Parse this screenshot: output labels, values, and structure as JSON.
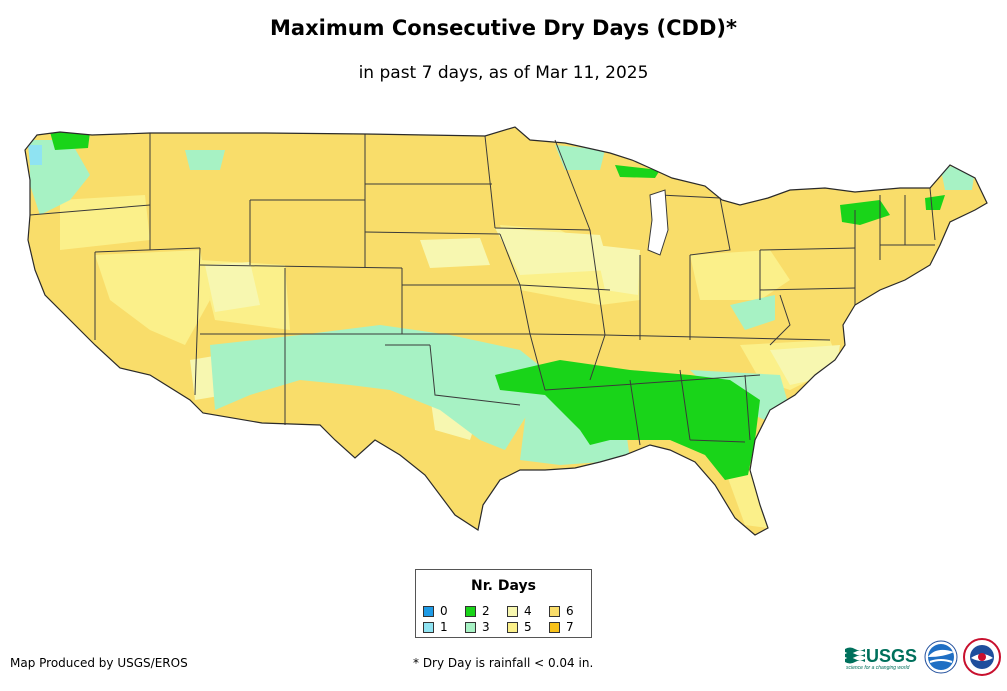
{
  "title": "Maximum Consecutive Dry Days (CDD)*",
  "subtitle": "in past 7 days, as of Mar 11, 2025",
  "legend": {
    "title": "Nr. Days",
    "items": [
      {
        "label": "0",
        "color": "#1e9be6"
      },
      {
        "label": "2",
        "color": "#19d419"
      },
      {
        "label": "4",
        "color": "#f7f7b0"
      },
      {
        "label": "6",
        "color": "#f9dd6a"
      },
      {
        "label": "1",
        "color": "#8fe3f2"
      },
      {
        "label": "3",
        "color": "#a7f2c4"
      },
      {
        "label": "5",
        "color": "#fbf08a"
      },
      {
        "label": "7",
        "color": "#f8c21a"
      }
    ]
  },
  "footer": {
    "credit": "Map Produced by USGS/EROS",
    "note": "* Dry Day is rainfall < 0.04 in."
  },
  "logos": {
    "usgs_text": "USGS",
    "usgs_tagline": "science for a changing world"
  },
  "colors": {
    "day6": "#f9dd6a",
    "day5": "#fbf08a",
    "day4": "#f7f7b0",
    "day3": "#a7f2c4",
    "day2": "#19d419",
    "day1": "#8fe3f2",
    "border": "#3a3a3a"
  }
}
